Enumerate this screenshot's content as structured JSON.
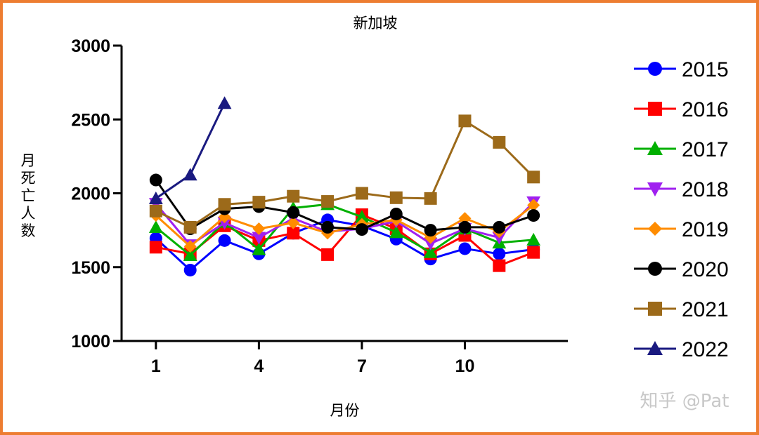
{
  "chart_data": {
    "type": "line",
    "title": "新加坡",
    "xlabel": "月份",
    "ylabel": "月死亡人数",
    "xlim": [
      0,
      13
    ],
    "xticks": [
      1,
      4,
      7,
      10
    ],
    "ylim": [
      1000,
      3000
    ],
    "yticks": [
      1000,
      1500,
      2000,
      2500,
      3000
    ],
    "grid": false,
    "legend_position": "right",
    "series": [
      {
        "name": "2015",
        "color": "#0000ff",
        "marker": "circle",
        "x": [
          1,
          2,
          3,
          4,
          5,
          6,
          7,
          8,
          9,
          10,
          11,
          12
        ],
        "y": [
          1695,
          1480,
          1680,
          1590,
          1730,
          1820,
          1780,
          1690,
          1555,
          1625,
          1590,
          1620
        ]
      },
      {
        "name": "2016",
        "color": "#ff0000",
        "marker": "square",
        "x": [
          1,
          2,
          3,
          4,
          5,
          6,
          7,
          8,
          9,
          10,
          11,
          12
        ],
        "y": [
          1635,
          1590,
          1780,
          1680,
          1730,
          1585,
          1855,
          1760,
          1590,
          1715,
          1510,
          1600
        ]
      },
      {
        "name": "2017",
        "color": "#00b000",
        "marker": "triangle-up",
        "x": [
          1,
          2,
          3,
          4,
          5,
          6,
          7,
          8,
          9,
          10,
          11,
          12
        ],
        "y": [
          1770,
          1580,
          1805,
          1620,
          1900,
          1925,
          1840,
          1735,
          1600,
          1760,
          1665,
          1685
        ]
      },
      {
        "name": "2018",
        "color": "#a020f0",
        "marker": "triangle-down",
        "x": [
          1,
          2,
          3,
          4,
          5,
          6,
          7,
          8,
          9,
          10,
          11,
          12
        ],
        "y": [
          1930,
          1650,
          1800,
          1700,
          1830,
          1740,
          1760,
          1810,
          1660,
          1760,
          1700,
          1940
        ]
      },
      {
        "name": "2019",
        "color": "#ff8c00",
        "marker": "diamond",
        "x": [
          1,
          2,
          3,
          4,
          5,
          6,
          7,
          8,
          9,
          10,
          11,
          12
        ],
        "y": [
          1850,
          1640,
          1840,
          1760,
          1800,
          1730,
          1790,
          1820,
          1700,
          1830,
          1740,
          1920
        ]
      },
      {
        "name": "2020",
        "color": "#000000",
        "marker": "circle",
        "x": [
          1,
          2,
          3,
          4,
          5,
          6,
          7,
          8,
          9,
          10,
          11,
          12
        ],
        "y": [
          2090,
          1760,
          1895,
          1910,
          1870,
          1770,
          1755,
          1860,
          1750,
          1770,
          1770,
          1850
        ]
      },
      {
        "name": "2021",
        "color": "#9c6a1a",
        "marker": "square",
        "x": [
          1,
          2,
          3,
          4,
          5,
          6,
          7,
          8,
          9,
          10,
          11,
          12
        ],
        "y": [
          1880,
          1770,
          1925,
          1940,
          1980,
          1945,
          2000,
          1970,
          1965,
          2490,
          2345,
          2110
        ]
      },
      {
        "name": "2022",
        "color": "#1a1a80",
        "marker": "triangle-up",
        "x": [
          1,
          2,
          3
        ],
        "y": [
          1965,
          2125,
          2610
        ]
      }
    ]
  },
  "watermark": "知乎 @Pat"
}
